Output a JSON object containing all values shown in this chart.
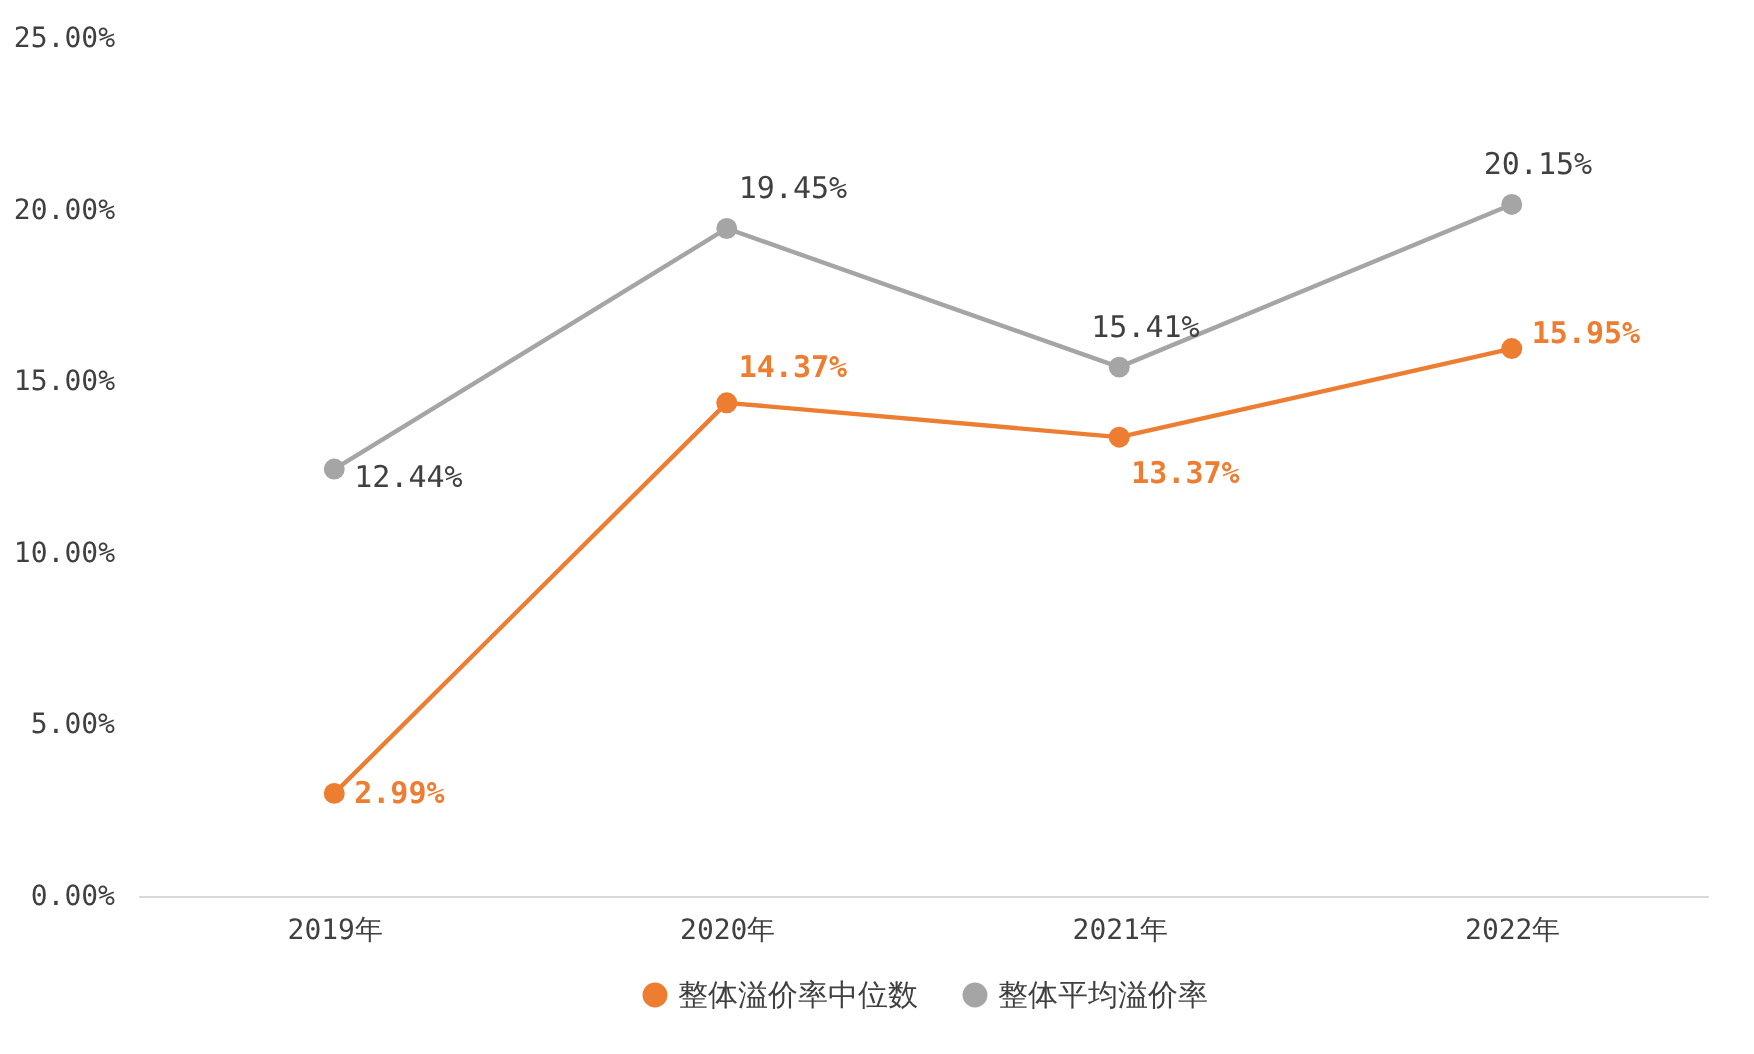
{
  "chart_data": {
    "type": "line",
    "categories": [
      "2019年",
      "2020年",
      "2021年",
      "2022年"
    ],
    "series": [
      {
        "name": "整体溢价率中位数",
        "color": "#ed7d31",
        "values": [
          2.99,
          14.37,
          13.37,
          15.95
        ],
        "value_labels": [
          "2.99%",
          "14.37%",
          "13.37%",
          "15.95%"
        ]
      },
      {
        "name": "整体平均溢价率",
        "color": "#a5a5a5",
        "values": [
          12.44,
          19.45,
          15.41,
          20.15
        ],
        "value_labels": [
          "12.44%",
          "19.45%",
          "15.41%",
          "20.15%"
        ]
      }
    ],
    "ylim": [
      0,
      25
    ],
    "yticks": [
      {
        "value": 0,
        "label": "0.00%"
      },
      {
        "value": 5,
        "label": "5.00%"
      },
      {
        "value": 10,
        "label": "10.00%"
      },
      {
        "value": 15,
        "label": "15.00%"
      },
      {
        "value": 20,
        "label": "20.00%"
      },
      {
        "value": 25,
        "label": "25.00%"
      }
    ],
    "legend": "bottom",
    "marker": "circle",
    "line_style": "solid"
  }
}
